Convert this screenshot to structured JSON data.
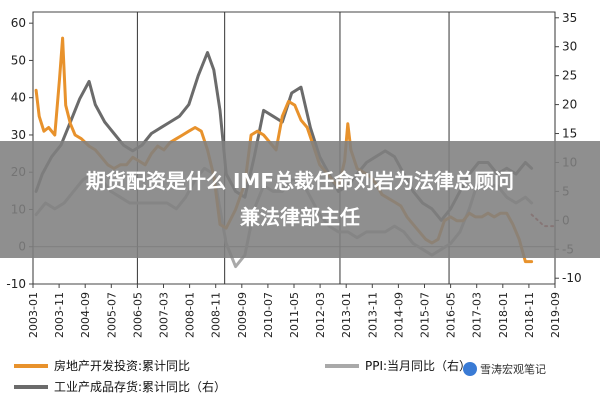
{
  "overlay": {
    "line1": "期货配资是什么 IMF总裁任命刘岩为法律总顾问",
    "line2": "兼法律部主任"
  },
  "watermark": "雪涛宏观笔记",
  "colors": {
    "real_estate": "#E8922C",
    "ppi": "#A9A9A9",
    "inventory": "#6B6B6B",
    "overlay_bg": "#7F7F7F",
    "grid": "#999999"
  },
  "chart_data": {
    "type": "line",
    "x_ticks": [
      "2003-01",
      "2003-11",
      "2004-09",
      "2005-07",
      "2006-05",
      "2007-03",
      "2008-01",
      "2008-11",
      "2009-09",
      "2010-07",
      "2011-05",
      "2012-03",
      "2013-01",
      "2013-11",
      "2014-09",
      "2015-07",
      "2016-05",
      "2017-03",
      "2018-01",
      "2018-11",
      "2019-09"
    ],
    "x_range": [
      2003.0,
      2019.75
    ],
    "vlines": [
      2003.0,
      2006.35,
      2009.15,
      2012.85,
      2016.35,
      2019.75
    ],
    "y_left": {
      "ticks": [
        -10,
        0,
        10,
        20,
        30,
        40,
        50,
        60
      ],
      "range": [
        -10,
        63
      ]
    },
    "y_right": {
      "ticks": [
        -10,
        -5,
        0,
        5,
        10,
        15,
        20,
        25,
        30,
        35
      ],
      "range": [
        -11,
        36
      ]
    },
    "legend": [
      {
        "label": "房地产开发投资:累计同比",
        "color": "#E8922C"
      },
      {
        "label": "PPI:当月同比（右）",
        "color": "#A9A9A9"
      },
      {
        "label": "工业产成品存货:累计同比（右）",
        "color": "#6B6B6B"
      }
    ],
    "series": [
      {
        "name": "房地产开发投资:累计同比",
        "axis": "left",
        "x": [
          2003.1,
          2003.2,
          2003.35,
          2003.5,
          2003.7,
          2003.85,
          2003.95,
          2004.05,
          2004.2,
          2004.35,
          2004.55,
          2004.8,
          2005.0,
          2005.2,
          2005.4,
          2005.6,
          2005.8,
          2006.0,
          2006.2,
          2006.4,
          2006.6,
          2006.8,
          2007.0,
          2007.2,
          2007.4,
          2007.6,
          2007.8,
          2008.0,
          2008.2,
          2008.4,
          2008.6,
          2008.8,
          2009.0,
          2009.2,
          2009.5,
          2009.8,
          2010.0,
          2010.2,
          2010.4,
          2010.6,
          2010.8,
          2011.0,
          2011.2,
          2011.4,
          2011.6,
          2011.8,
          2012.0,
          2012.2,
          2012.4,
          2012.6,
          2012.8,
          2013.0,
          2013.1,
          2013.2,
          2013.4,
          2013.6,
          2013.8,
          2014.0,
          2014.2,
          2014.4,
          2014.6,
          2014.8,
          2015.0,
          2015.2,
          2015.4,
          2015.6,
          2015.8,
          2016.0,
          2016.2,
          2016.4,
          2016.6,
          2016.8,
          2017.0,
          2017.2,
          2017.4,
          2017.6,
          2017.8,
          2018.0,
          2018.2,
          2018.4,
          2018.6,
          2018.8,
          2019.0
        ],
        "y": [
          42,
          35,
          31,
          32,
          30,
          45,
          56,
          38,
          33,
          30,
          29,
          27,
          26,
          24,
          22,
          21,
          22,
          22,
          24,
          23,
          22,
          25,
          27,
          26,
          28,
          29,
          30,
          31,
          32,
          31,
          26,
          19,
          6,
          5,
          10,
          17,
          30,
          31,
          30,
          28,
          26,
          35,
          39,
          38,
          34,
          32,
          27,
          22,
          20,
          18,
          16,
          23,
          33,
          26,
          21,
          20,
          19,
          17,
          14,
          13,
          12,
          11,
          8,
          6,
          4,
          2,
          1,
          2,
          7,
          8,
          7,
          7,
          9,
          8,
          8,
          9,
          8,
          9,
          9,
          6,
          2,
          -4,
          -4
        ]
      },
      {
        "name": "PPI:当月同比（右）",
        "axis": "right",
        "x": [
          2003.1,
          2003.4,
          2003.7,
          2004.0,
          2004.3,
          2004.6,
          2004.9,
          2005.2,
          2005.5,
          2005.8,
          2006.1,
          2006.4,
          2006.7,
          2007.0,
          2007.3,
          2007.6,
          2007.9,
          2008.2,
          2008.5,
          2008.8,
          2009.0,
          2009.2,
          2009.5,
          2009.8,
          2010.1,
          2010.4,
          2010.7,
          2011.0,
          2011.3,
          2011.6,
          2011.9,
          2012.2,
          2012.5,
          2012.8,
          2013.1,
          2013.4,
          2013.7,
          2014.0,
          2014.3,
          2014.6,
          2014.9,
          2015.2,
          2015.5,
          2015.8,
          2016.1,
          2016.4,
          2016.7,
          2017.0,
          2017.3,
          2017.6,
          2017.9,
          2018.2,
          2018.5,
          2018.8,
          2019.0
        ],
        "y": [
          1,
          3,
          2,
          3,
          5,
          7,
          8,
          7,
          5,
          4,
          3,
          3,
          3,
          3,
          3,
          2,
          4,
          7,
          9,
          8,
          2,
          -4,
          -8,
          -6,
          2,
          6,
          5,
          5,
          7,
          7,
          4,
          1,
          -1,
          -2,
          -2,
          -3,
          -2,
          -2,
          -2,
          -1,
          -2,
          -4,
          -5,
          -6,
          -5,
          -4,
          -2,
          2,
          7,
          6,
          6,
          4,
          3,
          4,
          3
        ]
      },
      {
        "name": "PPI:当月同比（右）",
        "axis": "right",
        "dashed": true,
        "x": [
          2019.0,
          2019.2,
          2019.4,
          2019.6,
          2019.75
        ],
        "y": [
          1,
          0,
          -1,
          -1,
          -1
        ]
      },
      {
        "name": "工业产成品存货:累计同比（右）",
        "axis": "right",
        "x": [
          2003.1,
          2003.3,
          2003.6,
          2003.9,
          2004.2,
          2004.5,
          2004.8,
          2005.0,
          2005.3,
          2005.6,
          2005.9,
          2006.2,
          2006.5,
          2006.8,
          2007.1,
          2007.4,
          2007.7,
          2008.0,
          2008.3,
          2008.6,
          2008.8,
          2009.0,
          2009.2,
          2009.5,
          2009.8,
          2010.1,
          2010.4,
          2010.7,
          2011.0,
          2011.3,
          2011.6,
          2011.9,
          2012.2,
          2012.5,
          2012.8,
          2013.1,
          2013.4,
          2013.7,
          2014.0,
          2014.3,
          2014.6,
          2014.9,
          2015.2,
          2015.5,
          2015.8,
          2016.1,
          2016.4,
          2016.7,
          2017.0,
          2017.3,
          2017.6,
          2017.9,
          2018.2,
          2018.5,
          2018.8,
          2019.0
        ],
        "y": [
          5,
          8,
          11,
          13,
          17,
          21,
          24,
          20,
          17,
          15,
          13,
          12,
          13,
          15,
          16,
          17,
          18,
          20,
          25,
          29,
          26,
          19,
          8,
          5,
          4,
          11,
          19,
          18,
          17,
          22,
          23,
          16,
          11,
          8,
          5,
          6,
          8,
          10,
          11,
          12,
          11,
          8,
          5,
          3,
          2,
          0,
          2,
          5,
          8,
          10,
          10,
          8,
          9,
          8,
          10,
          9
        ]
      }
    ]
  }
}
